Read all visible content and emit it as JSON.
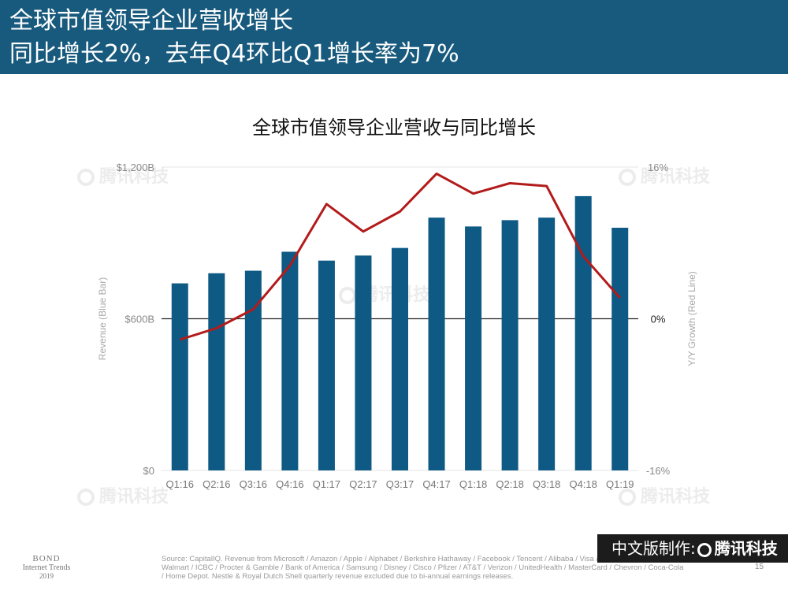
{
  "header": {
    "title_line1": "全球市值领导企业营收增长",
    "title_line2": "同比增长2%，去年Q4环比Q1增长率为7%"
  },
  "chart_data": {
    "type": "bar",
    "title": "全球市值领导企业营收与同比增长",
    "categories": [
      "Q1:16",
      "Q2:16",
      "Q3:16",
      "Q4:16",
      "Q1:17",
      "Q2:17",
      "Q3:17",
      "Q4:17",
      "Q1:18",
      "Q2:18",
      "Q3:18",
      "Q4:18",
      "Q1:19"
    ],
    "series": [
      {
        "type": "bar",
        "axis": "left",
        "color": "#0e5a84",
        "values": [
          740,
          780,
          790,
          865,
          830,
          850,
          880,
          1000,
          965,
          990,
          1000,
          1085,
          960
        ]
      },
      {
        "type": "line",
        "axis": "right",
        "color": "#b31b1b",
        "values": [
          -2.2,
          -1.0,
          1.0,
          5.6,
          12.1,
          9.2,
          11.3,
          15.3,
          13.2,
          14.3,
          14.0,
          6.6,
          2.2
        ]
      }
    ],
    "ylabel": "Revenue (Blue Bar)",
    "y2label": "Y/Y Growth (Red Line)",
    "ylim": [
      0,
      1200
    ],
    "y2lim": [
      -16,
      16
    ],
    "yticks": [
      "$0",
      "$600B",
      "$1,200B"
    ],
    "y2ticks": [
      "-16%",
      "0%",
      "16%"
    ],
    "grid": true
  },
  "watermark": {
    "text": "腾讯科技"
  },
  "footer": {
    "bond_line1": "BOND",
    "bond_line2": "Internet Trends",
    "bond_line3": "2019",
    "source": "Source: CapitalIQ. Revenue from Microsoft / Amazon / Apple / Alphabet / Berkshire Hathaway / Facebook / Tencent / Alibaba / Visa / JPMorgan / Exxon Mobil / Walmart / ICBC / Procter & Gamble / Bank of America / Samsung / Disney / Cisco / Pfizer / AT&T / Verizon / UnitedHealth / MasterCard / Chevron / Coca-Cola / Home Depot. Nestle & Royal Dutch Shell quarterly revenue excluded due to bi-annual earnings releases.",
    "page_number": "15"
  },
  "badge": {
    "prefix": "中文版制作:",
    "brand": "腾讯科技"
  }
}
